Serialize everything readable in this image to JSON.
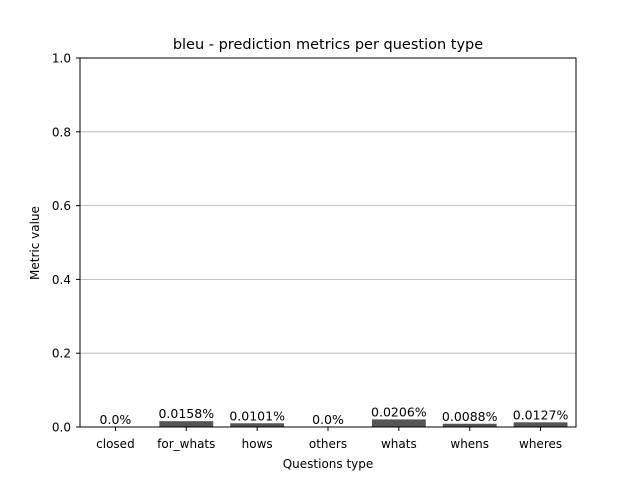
{
  "chart_data": {
    "type": "bar",
    "title": "bleu - prediction metrics per question type",
    "xlabel": "Questions type",
    "ylabel": "Metric value",
    "categories": [
      "closed",
      "for_whats",
      "hows",
      "others",
      "whats",
      "whens",
      "wheres"
    ],
    "values": [
      0.0,
      0.0158,
      0.0101,
      0.0,
      0.0206,
      0.0088,
      0.0127
    ],
    "data_labels": [
      "0.0%",
      "0.0158%",
      "0.0101%",
      "0.0%",
      "0.0206%",
      "0.0088%",
      "0.0127%"
    ],
    "ylim": [
      0,
      1.0
    ],
    "yticks": [
      "0.0",
      "0.2",
      "0.4",
      "0.6",
      "0.8",
      "1.0"
    ],
    "grid": "horizontal",
    "bar_color": "#555555"
  }
}
